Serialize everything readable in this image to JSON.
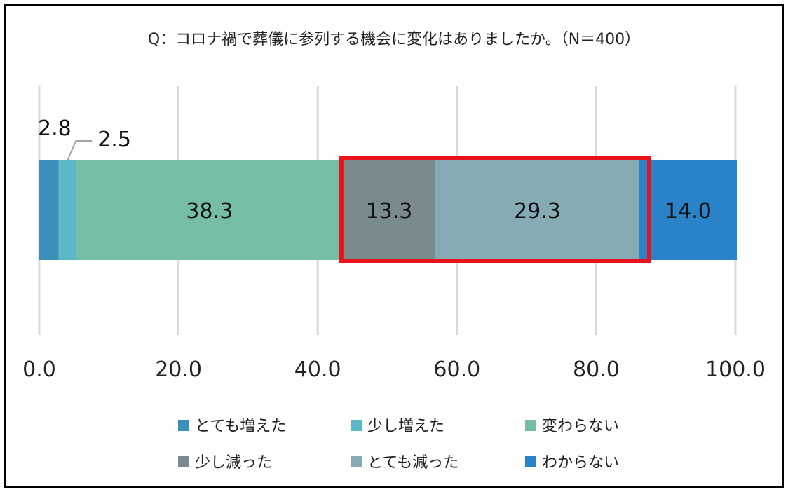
{
  "chart_data": {
    "type": "bar",
    "orientation": "horizontal-stacked",
    "title": "Q：コロナ禍で葬儀に参列する機会に変化はありましたか。（N＝400）",
    "xlim": [
      0,
      100
    ],
    "x_ticks": [
      "0.0",
      "20.0",
      "40.0",
      "60.0",
      "80.0",
      "100.0"
    ],
    "grid": true,
    "legend_position": "bottom",
    "series": [
      {
        "name": "とても増えた",
        "value": 2.8,
        "label": "2.8",
        "color": "#3b8fb8"
      },
      {
        "name": "少し増えた",
        "value": 2.5,
        "label": "2.5",
        "color": "#5ab7c6"
      },
      {
        "name": "変わらない",
        "value": 38.3,
        "label": "38.3",
        "color": "#76bda5"
      },
      {
        "name": "少し減った",
        "value": 13.3,
        "label": "13.3",
        "color": "#7a8b8f"
      },
      {
        "name": "とても減った",
        "value": 29.3,
        "label": "29.3",
        "color": "#86abb5"
      },
      {
        "name": "わからない",
        "value": 14.0,
        "label": "14.0",
        "color": "#2a82c8"
      }
    ],
    "highlight": {
      "from_series": 3,
      "to_series": 4,
      "color": "#e8141b"
    }
  }
}
